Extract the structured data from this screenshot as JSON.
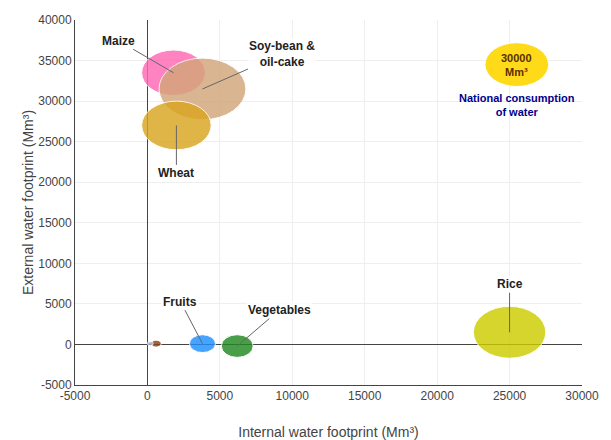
{
  "chart_data": {
    "type": "bubble",
    "xlabel": "Internal water footprint (Mm³)",
    "ylabel": "External water footprint (Mm³)",
    "xlim": [
      -5000,
      30000
    ],
    "ylim": [
      -5000,
      40000
    ],
    "xticks": [
      -5000,
      0,
      5000,
      10000,
      15000,
      20000,
      25000,
      30000
    ],
    "yticks": [
      -5000,
      0,
      5000,
      10000,
      15000,
      20000,
      25000,
      30000,
      35000,
      40000
    ],
    "grid": true,
    "points": [
      {
        "name": "Maize",
        "x": 1800,
        "y": 33500,
        "rx": 2200,
        "ry": 2800,
        "color": "#FF69B4"
      },
      {
        "name": "Soy-bean &\noil-cake",
        "x": 3800,
        "y": 31500,
        "rx": 3000,
        "ry": 3800,
        "color": "#D2A679"
      },
      {
        "name": "Wheat",
        "x": 2000,
        "y": 27000,
        "rx": 2400,
        "ry": 3000,
        "color": "#DAA520"
      },
      {
        "name": "Rice",
        "x": 25000,
        "y": 1500,
        "rx": 2500,
        "ry": 3200,
        "color": "#CCCC00"
      },
      {
        "name": "Fruits",
        "x": 3800,
        "y": 100,
        "rx": 900,
        "ry": 1100,
        "color": "#1E90FF"
      },
      {
        "name": "Vegetables",
        "x": 6200,
        "y": -200,
        "rx": 1100,
        "ry": 1400,
        "color": "#228B22"
      },
      {
        "name": null,
        "x": 600,
        "y": 100,
        "rx": 350,
        "ry": 430,
        "color": "#8B4513"
      },
      {
        "name": null,
        "x": 200,
        "y": 100,
        "rx": 200,
        "ry": 260,
        "color": "#AAAACC"
      }
    ],
    "size_key": {
      "x": 25500,
      "y": 34500,
      "rx": 2200,
      "ry": 2700,
      "color": "#FFD700",
      "text": "30000\nMm³",
      "label": "National consumption\nof water"
    }
  }
}
